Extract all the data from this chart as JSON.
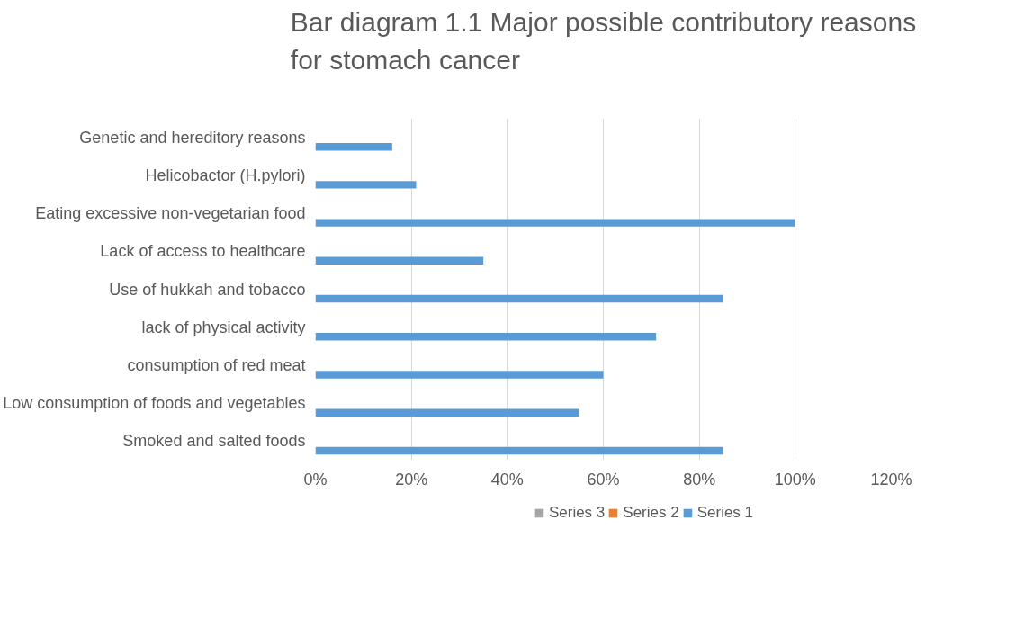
{
  "chart_data": {
    "type": "bar",
    "orientation": "horizontal",
    "title": "Bar diagram 1.1 Major possible contributory reasons for stomach cancer",
    "categories": [
      "Genetic and hereditory reasons",
      "Helicobactor (H.pylori)",
      "Eating excessive non-vegetarian food",
      "Lack of access to healthcare",
      "Use of hukkah and tobacco",
      "lack of physical activity",
      "consumption of red meat",
      "Low consumption of foods and vegetables",
      "Smoked and salted foods"
    ],
    "series": [
      {
        "name": "Series 1",
        "color": "#5b9bd5",
        "values": [
          16,
          21,
          100,
          35,
          85,
          71,
          60,
          55,
          85
        ]
      },
      {
        "name": "Series 2",
        "color": "#ed7d31",
        "values": [
          null,
          null,
          null,
          null,
          null,
          null,
          null,
          null,
          null
        ]
      },
      {
        "name": "Series 3",
        "color": "#a5a5a5",
        "values": [
          null,
          null,
          null,
          null,
          null,
          null,
          null,
          null,
          null
        ]
      }
    ],
    "xlim": [
      0,
      120
    ],
    "xticks": [
      {
        "value": 0,
        "label": "0%"
      },
      {
        "value": 20,
        "label": "20%"
      },
      {
        "value": 40,
        "label": "40%"
      },
      {
        "value": 60,
        "label": "60%"
      },
      {
        "value": 80,
        "label": "80%"
      },
      {
        "value": 100,
        "label": "100%"
      },
      {
        "value": 120,
        "label": "120%"
      }
    ],
    "grid": "x",
    "legend": "bottom"
  }
}
